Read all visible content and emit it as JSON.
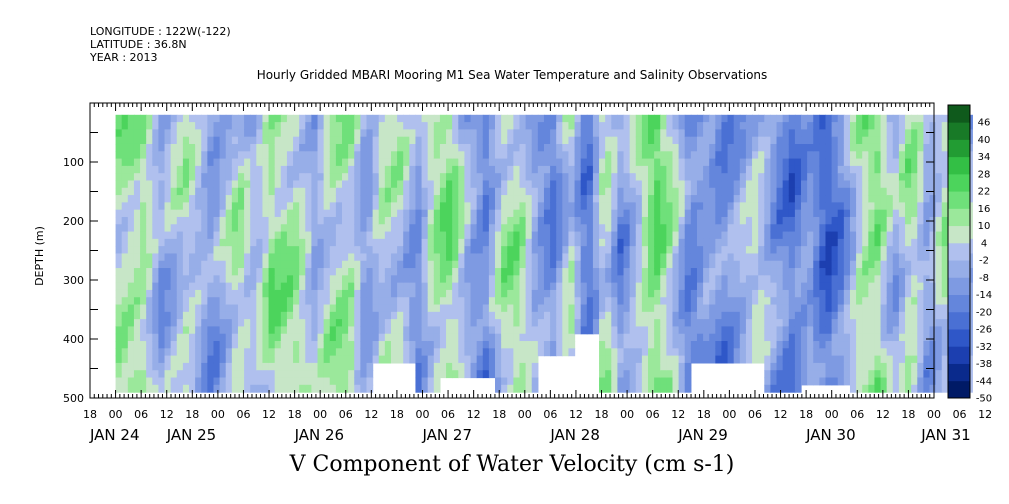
{
  "header": {
    "longitude": "LONGITUDE : 122W(-122)",
    "latitude": "LATITUDE : 36.8N",
    "year": "YEAR : 2013"
  },
  "chart_data": {
    "type": "heatmap",
    "title": "Hourly Gridded MBARI Mooring M1 Sea Water Temperature and Salinity Observations",
    "xlabel": "V Component of Water Velocity (cm s-1)",
    "ylabel": "DEPTH (m)",
    "ylim": [
      500,
      0
    ],
    "y_data_range": [
      20,
      490
    ],
    "y_ticks": [
      100,
      200,
      300,
      400,
      500
    ],
    "x_hours_range": [
      -6,
      192
    ],
    "x_data_start_hours": 0,
    "x_hour_ticks": [
      {
        "h": -6,
        "label": "18"
      },
      {
        "h": 0,
        "label": "00"
      },
      {
        "h": 6,
        "label": "06"
      },
      {
        "h": 12,
        "label": "12"
      },
      {
        "h": 18,
        "label": "18"
      },
      {
        "h": 24,
        "label": "00"
      },
      {
        "h": 30,
        "label": "06"
      },
      {
        "h": 36,
        "label": "12"
      },
      {
        "h": 42,
        "label": "18"
      },
      {
        "h": 48,
        "label": "00"
      },
      {
        "h": 54,
        "label": "06"
      },
      {
        "h": 60,
        "label": "12"
      },
      {
        "h": 66,
        "label": "18"
      },
      {
        "h": 72,
        "label": "00"
      },
      {
        "h": 78,
        "label": "06"
      },
      {
        "h": 84,
        "label": "12"
      },
      {
        "h": 90,
        "label": "18"
      },
      {
        "h": 96,
        "label": "00"
      },
      {
        "h": 102,
        "label": "06"
      },
      {
        "h": 108,
        "label": "12"
      },
      {
        "h": 114,
        "label": "18"
      },
      {
        "h": 120,
        "label": "00"
      },
      {
        "h": 126,
        "label": "06"
      },
      {
        "h": 132,
        "label": "12"
      },
      {
        "h": 138,
        "label": "18"
      },
      {
        "h": 144,
        "label": "00"
      },
      {
        "h": 150,
        "label": "06"
      },
      {
        "h": 156,
        "label": "12"
      },
      {
        "h": 162,
        "label": "18"
      },
      {
        "h": 168,
        "label": "00"
      },
      {
        "h": 174,
        "label": "06"
      },
      {
        "h": 180,
        "label": "12"
      },
      {
        "h": 186,
        "label": "18"
      },
      {
        "h": 192,
        "label": "00"
      },
      {
        "h": 198,
        "label": "06"
      },
      {
        "h": 204,
        "label": "12"
      }
    ],
    "x_day_labels": [
      {
        "h": -6,
        "label": "JAN 24"
      },
      {
        "h": 12,
        "label": "JAN 25"
      },
      {
        "h": 42,
        "label": "JAN 26"
      },
      {
        "h": 72,
        "label": "JAN 27"
      },
      {
        "h": 102,
        "label": "JAN 28"
      },
      {
        "h": 132,
        "label": "JAN 29"
      },
      {
        "h": 162,
        "label": "JAN 30"
      },
      {
        "h": 189,
        "label": "JAN 31"
      }
    ],
    "colorbar": {
      "levels": [
        -50,
        -44,
        -38,
        -32,
        -26,
        -20,
        -14,
        -8,
        -2,
        4,
        10,
        16,
        22,
        28,
        34,
        40,
        46
      ],
      "colors": [
        "#001a66",
        "#0a2a8c",
        "#1c3fb0",
        "#2f57c8",
        "#4a70d4",
        "#6486dc",
        "#7e9ae2",
        "#97aee8",
        "#b0c0ee",
        "#c7e6c7",
        "#9be89b",
        "#6fe07a",
        "#4cd45c",
        "#33bf45",
        "#229c33",
        "#187a27",
        "#0f5a1c"
      ],
      "label_values": [
        46,
        40,
        34,
        28,
        22,
        16,
        10,
        4,
        -2,
        -8,
        -14,
        -20,
        -26,
        -32,
        -38,
        -44,
        -50
      ]
    },
    "column_profile": [
      {
        "h": 0,
        "v": 10
      },
      {
        "h": 6,
        "v": 12
      },
      {
        "h": 10,
        "v": -8
      },
      {
        "h": 16,
        "v": 6
      },
      {
        "h": 22,
        "v": -12
      },
      {
        "h": 28,
        "v": 8
      },
      {
        "h": 32,
        "v": -4
      },
      {
        "h": 36,
        "v": 14
      },
      {
        "h": 42,
        "v": 10
      },
      {
        "h": 46,
        "v": -6
      },
      {
        "h": 50,
        "v": 8
      },
      {
        "h": 54,
        "v": 12
      },
      {
        "h": 58,
        "v": -10
      },
      {
        "h": 62,
        "v": 6
      },
      {
        "h": 66,
        "v": 4
      },
      {
        "h": 70,
        "v": -14
      },
      {
        "h": 74,
        "v": 10
      },
      {
        "h": 78,
        "v": 16
      },
      {
        "h": 82,
        "v": -6
      },
      {
        "h": 86,
        "v": -18
      },
      {
        "h": 90,
        "v": 8
      },
      {
        "h": 94,
        "v": 12
      },
      {
        "h": 98,
        "v": -8
      },
      {
        "h": 102,
        "v": -16
      },
      {
        "h": 106,
        "v": 6
      },
      {
        "h": 110,
        "v": -22
      },
      {
        "h": 114,
        "v": 10
      },
      {
        "h": 118,
        "v": -14
      },
      {
        "h": 122,
        "v": 4
      },
      {
        "h": 126,
        "v": 22
      },
      {
        "h": 130,
        "v": 6
      },
      {
        "h": 134,
        "v": -18
      },
      {
        "h": 138,
        "v": -10
      },
      {
        "h": 142,
        "v": -16
      },
      {
        "h": 146,
        "v": -6
      },
      {
        "h": 150,
        "v": 4
      },
      {
        "h": 154,
        "v": -12
      },
      {
        "h": 158,
        "v": -20
      },
      {
        "h": 162,
        "v": -8
      },
      {
        "h": 166,
        "v": -26
      },
      {
        "h": 170,
        "v": -14
      },
      {
        "h": 174,
        "v": 10
      },
      {
        "h": 178,
        "v": 16
      },
      {
        "h": 182,
        "v": -6
      },
      {
        "h": 186,
        "v": 12
      },
      {
        "h": 190,
        "v": -10
      },
      {
        "h": 194,
        "v": 8
      },
      {
        "h": 198,
        "v": -14
      },
      {
        "h": 201,
        "v": 6
      }
    ],
    "missing_blobs": [
      {
        "h0": 60,
        "h1": 70,
        "d0": 440,
        "d1": 490
      },
      {
        "h0": 75,
        "h1": 88,
        "d0": 465,
        "d1": 490
      },
      {
        "h0": 98,
        "h1": 112,
        "d0": 420,
        "d1": 490
      },
      {
        "h0": 107,
        "h1": 113,
        "d0": 390,
        "d1": 440
      },
      {
        "h0": 134,
        "h1": 152,
        "d0": 430,
        "d1": 490
      },
      {
        "h0": 160,
        "h1": 172,
        "d0": 475,
        "d1": 490
      }
    ]
  }
}
